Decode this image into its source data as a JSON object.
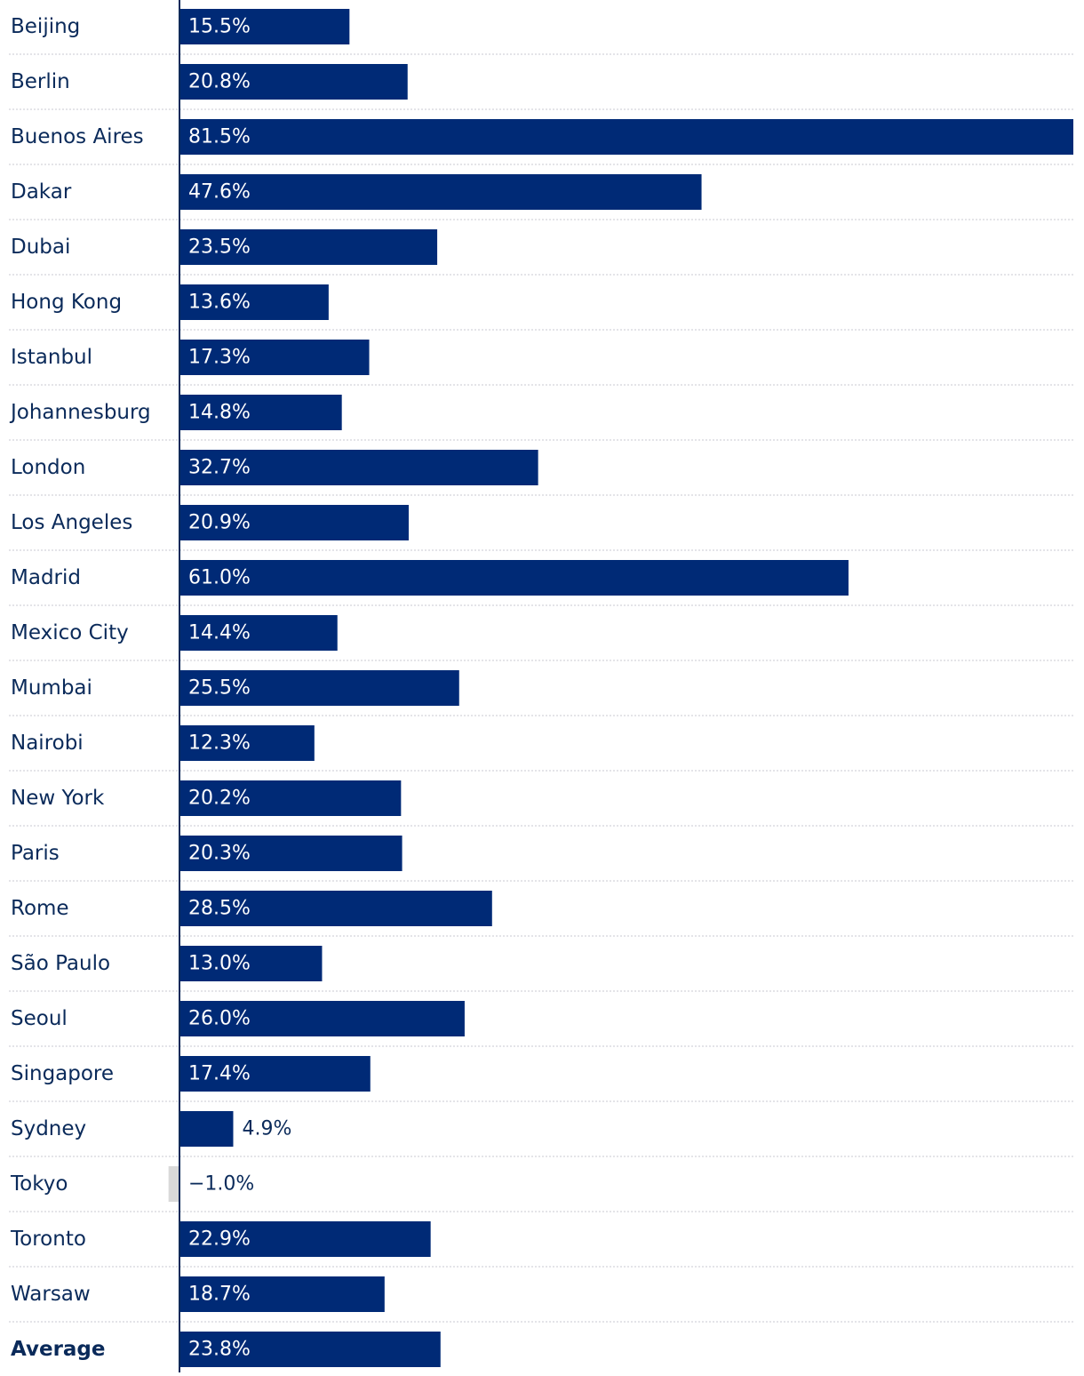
{
  "chart_data": {
    "type": "bar",
    "orientation": "horizontal",
    "categories": [
      "Beijing",
      "Berlin",
      "Buenos Aires",
      "Dakar",
      "Dubai",
      "Hong Kong",
      "Istanbul",
      "Johannesburg",
      "London",
      "Los Angeles",
      "Madrid",
      "Mexico City",
      "Mumbai",
      "Nairobi",
      "New York",
      "Paris",
      "Rome",
      "São Paulo",
      "Seoul",
      "Singapore",
      "Sydney",
      "Tokyo",
      "Toronto",
      "Warsaw",
      "Average"
    ],
    "values": [
      15.5,
      20.8,
      81.5,
      47.6,
      23.5,
      13.6,
      17.3,
      14.8,
      32.7,
      20.9,
      61.0,
      14.4,
      25.5,
      12.3,
      20.2,
      20.3,
      28.5,
      13.0,
      26.0,
      17.4,
      4.9,
      -1.0,
      22.9,
      18.7,
      23.8
    ],
    "value_labels": [
      "15.5%",
      "20.8%",
      "81.5%",
      "47.6%",
      "23.5%",
      "13.6%",
      "17.3%",
      "14.8%",
      "32.7%",
      "20.9%",
      "61.0%",
      "14.4%",
      "25.5%",
      "12.3%",
      "20.2%",
      "20.3%",
      "28.5%",
      "13.0%",
      "26.0%",
      "17.4%",
      "4.9%",
      "−1.0%",
      "22.9%",
      "18.7%",
      "23.8%"
    ],
    "highlight_category": "Average",
    "xlim": [
      -1.0,
      81.5
    ],
    "grid": false,
    "colors": {
      "positive": "#002a76",
      "negative": "#d9d9d9",
      "label_inside": "#ffffff",
      "label_outside": "#0a2a5a",
      "category_text": "#0a2a5a"
    }
  }
}
